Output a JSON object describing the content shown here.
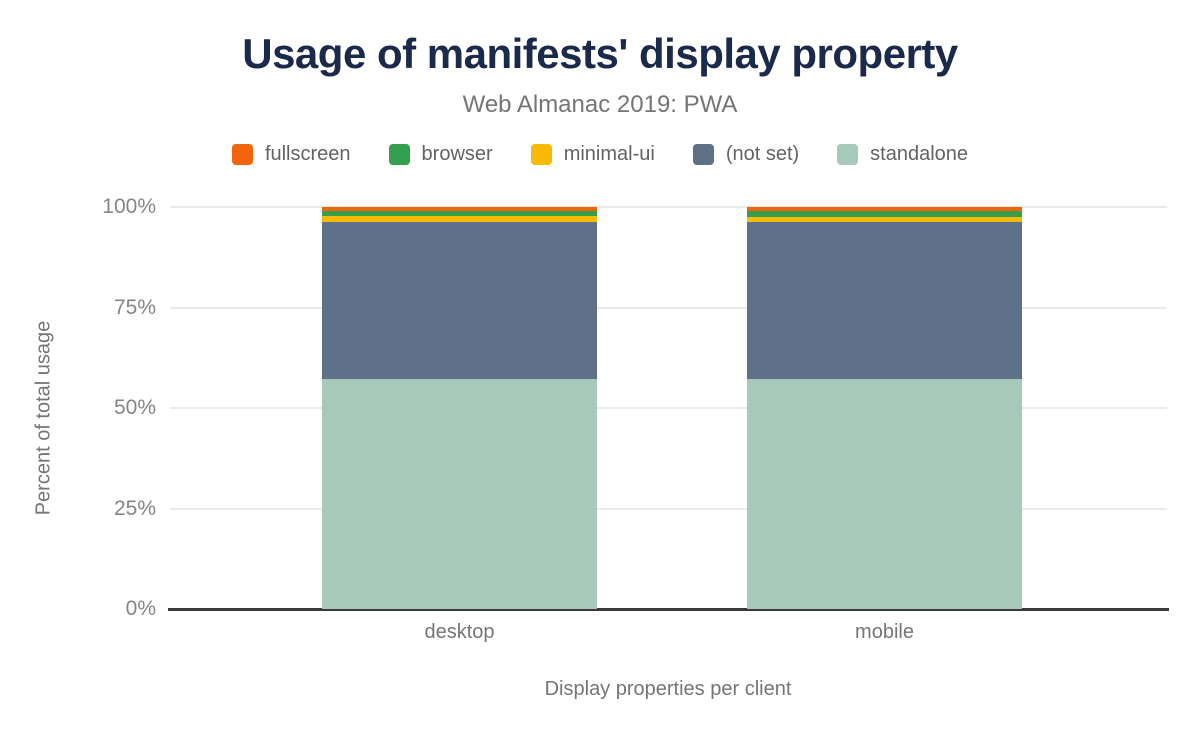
{
  "title": "Usage of manifests' display property",
  "subtitle": "Web Almanac 2019: PWA",
  "colors": {
    "title_text": "#1b2a4a",
    "subtitle_text": "#757575",
    "axis_title_text": "#757575",
    "tick_label_text": "#858585",
    "gridline": "#eaeaea",
    "axis_line": "#3a3a3a",
    "background": "#ffffff"
  },
  "chart_data": {
    "type": "bar",
    "stacked": true,
    "percent_stacked": true,
    "title": "Usage of manifests' display property",
    "subtitle": "Web Almanac 2019: PWA",
    "xlabel": "Display properties per client",
    "ylabel": "Percent of total usage",
    "categories": [
      "desktop",
      "mobile"
    ],
    "yticks": [
      0,
      25,
      50,
      75,
      100
    ],
    "ytick_labels": [
      "0%",
      "25%",
      "50%",
      "75%",
      "100%"
    ],
    "ylim": [
      0,
      100
    ],
    "grid": true,
    "legend_position": "top",
    "legend_order": [
      "fullscreen",
      "browser",
      "minimal-ui",
      "(not set)",
      "standalone"
    ],
    "stack_order_bottom_to_top": [
      "standalone",
      "(not set)",
      "minimal-ui",
      "browser",
      "fullscreen"
    ],
    "series": [
      {
        "name": "fullscreen",
        "color": "#f2650d",
        "values": [
          1.0,
          1.0
        ]
      },
      {
        "name": "browser",
        "color": "#34a04e",
        "values": [
          1.3,
          1.4
        ]
      },
      {
        "name": "minimal-ui",
        "color": "#f8ba05",
        "values": [
          1.5,
          1.4
        ]
      },
      {
        "name": "(not set)",
        "color": "#5f7089",
        "values": [
          39.1,
          38.9
        ]
      },
      {
        "name": "standalone",
        "color": "#a6c9b9",
        "values": [
          57.1,
          57.3
        ]
      }
    ]
  }
}
